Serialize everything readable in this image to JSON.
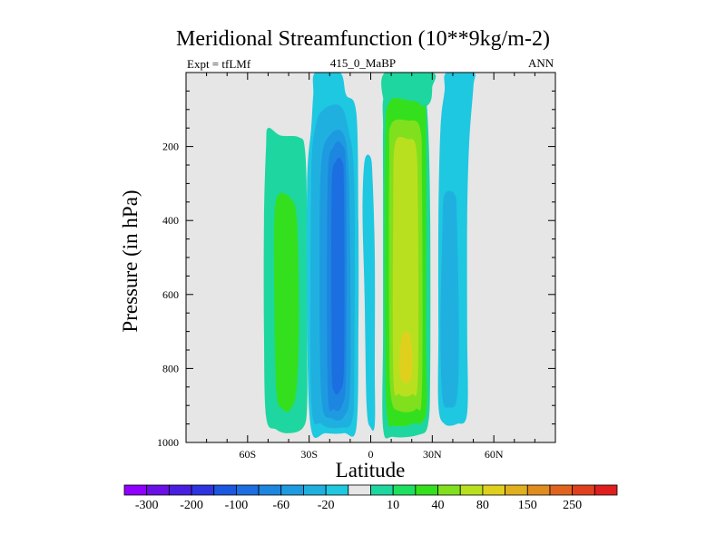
{
  "chart_data": {
    "type": "contour",
    "title": "Meridional Streamfunction (10**9kg/m-2)",
    "subtitle_left": "Expt = tfLMf",
    "subtitle_center": "415_0_MaBP",
    "subtitle_right": "ANN",
    "xlabel": "Latitude",
    "ylabel": "Pressure (in hPa)",
    "xlim": [
      -90,
      90
    ],
    "ylim": [
      0,
      1000
    ],
    "y_inverted": true,
    "x_ticks": [
      {
        "value": -60,
        "label": "60S"
      },
      {
        "value": -30,
        "label": "30S"
      },
      {
        "value": 0,
        "label": "0"
      },
      {
        "value": 30,
        "label": "30N"
      },
      {
        "value": 60,
        "label": "60N"
      }
    ],
    "y_ticks": [
      200,
      400,
      600,
      800,
      1000
    ],
    "y_tick_labels": [
      "200",
      "400",
      "600",
      "800",
      "1000"
    ],
    "background": "#e6e6e6",
    "colorbar": {
      "colors": [
        "#8f00ff",
        "#6a10e6",
        "#4a1ee0",
        "#2d34e0",
        "#1c57e0",
        "#1b6fe0",
        "#1d86e0",
        "#1e9be0",
        "#1fb0e0",
        "#1ec8e0",
        "#e6e6e6",
        "#1ed6a0",
        "#1ee060",
        "#34e01e",
        "#80e01e",
        "#b8e01e",
        "#e0d01e",
        "#e0b01e",
        "#e08c1e",
        "#e0641e",
        "#e0401e",
        "#e01e1e"
      ],
      "labels": [
        "-300",
        "-200",
        "-100",
        "-60",
        "-20",
        "10",
        "40",
        "80",
        "150",
        "250"
      ]
    },
    "regions": [
      {
        "name": "sh-outer-cell-positive",
        "level": 10,
        "color": "#1ed6a0",
        "points": [
          [
            -50,
            150
          ],
          [
            -44,
            170
          ],
          [
            -35,
            175
          ],
          [
            -32,
            210
          ],
          [
            -31,
            400
          ],
          [
            -31,
            700
          ],
          [
            -31,
            900
          ],
          [
            -33,
            960
          ],
          [
            -40,
            975
          ],
          [
            -46,
            965
          ],
          [
            -51,
            930
          ],
          [
            -52,
            700
          ],
          [
            -52,
            400
          ],
          [
            -51,
            200
          ]
        ]
      },
      {
        "name": "sh-outer-cell-40",
        "level": 40,
        "color": "#34e01e",
        "points": [
          [
            -45,
            330
          ],
          [
            -39,
            340
          ],
          [
            -36,
            400
          ],
          [
            -35,
            650
          ],
          [
            -36,
            850
          ],
          [
            -39,
            910
          ],
          [
            -43,
            910
          ],
          [
            -46,
            860
          ],
          [
            -47,
            600
          ],
          [
            -47,
            400
          ]
        ]
      },
      {
        "name": "sh-cell-negative-outer",
        "level": -20,
        "color": "#1ec8e0",
        "points": [
          [
            -27,
            0
          ],
          [
            -15,
            0
          ],
          [
            -12,
            60
          ],
          [
            -7,
            110
          ],
          [
            -6,
            400
          ],
          [
            -6,
            700
          ],
          [
            -7,
            960
          ],
          [
            -13,
            975
          ],
          [
            -22,
            975
          ],
          [
            -29,
            965
          ],
          [
            -31,
            700
          ],
          [
            -31,
            300
          ],
          [
            -29,
            150
          ],
          [
            -28,
            60
          ]
        ]
      },
      {
        "name": "sh-cell-negative-60",
        "level": -60,
        "color": "#1fb0e0",
        "points": [
          [
            -23,
            100
          ],
          [
            -15,
            90
          ],
          [
            -11,
            150
          ],
          [
            -8,
            300
          ],
          [
            -8,
            800
          ],
          [
            -9,
            940
          ],
          [
            -15,
            960
          ],
          [
            -24,
            950
          ],
          [
            -29,
            880
          ],
          [
            -29,
            300
          ],
          [
            -27,
            150
          ]
        ]
      },
      {
        "name": "sh-cell-negative-100",
        "level": -100,
        "color": "#1e9be0",
        "points": [
          [
            -20,
            170
          ],
          [
            -14,
            160
          ],
          [
            -11,
            240
          ],
          [
            -10,
            500
          ],
          [
            -10,
            850
          ],
          [
            -13,
            930
          ],
          [
            -19,
            935
          ],
          [
            -24,
            880
          ],
          [
            -25,
            500
          ],
          [
            -24,
            240
          ]
        ]
      },
      {
        "name": "sh-cell-core",
        "level": -140,
        "color": "#1d86e0",
        "points": [
          [
            -18,
            200
          ],
          [
            -14,
            195
          ],
          [
            -12,
            280
          ],
          [
            -12,
            800
          ],
          [
            -14,
            900
          ],
          [
            -18,
            910
          ],
          [
            -21,
            850
          ],
          [
            -21,
            300
          ]
        ]
      },
      {
        "name": "sh-cell-core-inner",
        "level": -180,
        "color": "#1b6fe0",
        "points": [
          [
            -17,
            240
          ],
          [
            -14,
            240
          ],
          [
            -13,
            320
          ],
          [
            -13,
            780
          ],
          [
            -15,
            860
          ],
          [
            -18,
            860
          ],
          [
            -19,
            780
          ],
          [
            -19,
            320
          ]
        ]
      },
      {
        "name": "equatorial-thin-negative",
        "level": -20,
        "color": "#1ec8e0",
        "points": [
          [
            -3,
            240
          ],
          [
            0,
            230
          ],
          [
            1,
            300
          ],
          [
            2,
            500
          ],
          [
            2,
            800
          ],
          [
            2,
            950
          ],
          [
            0,
            960
          ],
          [
            -2,
            900
          ],
          [
            -3,
            600
          ],
          [
            -4,
            380
          ]
        ]
      },
      {
        "name": "nh-hadley-top",
        "level": 10,
        "color": "#1ed6a0",
        "points": [
          [
            7,
            0
          ],
          [
            30,
            0
          ],
          [
            30,
            40
          ],
          [
            29,
            80
          ],
          [
            24,
            100
          ],
          [
            17,
            100
          ],
          [
            11,
            95
          ],
          [
            7,
            90
          ]
        ]
      },
      {
        "name": "nh-hadley-outer",
        "level": 10,
        "color": "#1ed6a0",
        "points": [
          [
            7,
            60
          ],
          [
            18,
            60
          ],
          [
            26,
            70
          ],
          [
            28,
            150
          ],
          [
            29,
            400
          ],
          [
            29,
            800
          ],
          [
            28,
            950
          ],
          [
            23,
            980
          ],
          [
            11,
            985
          ],
          [
            6,
            960
          ],
          [
            6,
            700
          ],
          [
            6,
            300
          ],
          [
            6,
            150
          ]
        ]
      },
      {
        "name": "nh-hadley-40",
        "level": 40,
        "color": "#34e01e",
        "points": [
          [
            9,
            80
          ],
          [
            18,
            75
          ],
          [
            25,
            90
          ],
          [
            27,
            150
          ],
          [
            27,
            700
          ],
          [
            27,
            920
          ],
          [
            20,
            950
          ],
          [
            12,
            955
          ],
          [
            8,
            930
          ],
          [
            7,
            700
          ],
          [
            7,
            200
          ]
        ]
      },
      {
        "name": "nh-hadley-80",
        "level": 80,
        "color": "#80e01e",
        "points": [
          [
            10,
            140
          ],
          [
            18,
            130
          ],
          [
            24,
            150
          ],
          [
            25,
            300
          ],
          [
            25,
            850
          ],
          [
            22,
            910
          ],
          [
            14,
            915
          ],
          [
            10,
            880
          ],
          [
            9,
            700
          ],
          [
            9,
            250
          ]
        ]
      },
      {
        "name": "nh-hadley-core",
        "level": 120,
        "color": "#b8e01e",
        "points": [
          [
            12,
            190
          ],
          [
            18,
            180
          ],
          [
            22,
            200
          ],
          [
            23,
            350
          ],
          [
            23,
            820
          ],
          [
            20,
            870
          ],
          [
            14,
            870
          ],
          [
            11,
            820
          ],
          [
            11,
            350
          ]
        ]
      },
      {
        "name": "nh-hadley-max",
        "level": 150,
        "color": "#e0d01e",
        "points": [
          [
            15,
            720
          ],
          [
            18,
            700
          ],
          [
            20,
            740
          ],
          [
            20,
            820
          ],
          [
            17,
            840
          ],
          [
            14,
            810
          ]
        ]
      },
      {
        "name": "nh-ferrel-outer",
        "level": -20,
        "color": "#1ec8e0",
        "points": [
          [
            37,
            0
          ],
          [
            50,
            0
          ],
          [
            50,
            40
          ],
          [
            48,
            190
          ],
          [
            47,
            400
          ],
          [
            47,
            700
          ],
          [
            47,
            920
          ],
          [
            42,
            950
          ],
          [
            36,
            950
          ],
          [
            33,
            900
          ],
          [
            33,
            700
          ],
          [
            33,
            400
          ],
          [
            34,
            150
          ],
          [
            36,
            50
          ]
        ]
      },
      {
        "name": "nh-ferrel-60",
        "level": -60,
        "color": "#1fb0e0",
        "points": [
          [
            36,
            330
          ],
          [
            41,
            330
          ],
          [
            42,
            400
          ],
          [
            43,
            700
          ],
          [
            42,
            880
          ],
          [
            38,
            905
          ],
          [
            35,
            880
          ],
          [
            34,
            700
          ],
          [
            35,
            420
          ]
        ]
      }
    ]
  }
}
